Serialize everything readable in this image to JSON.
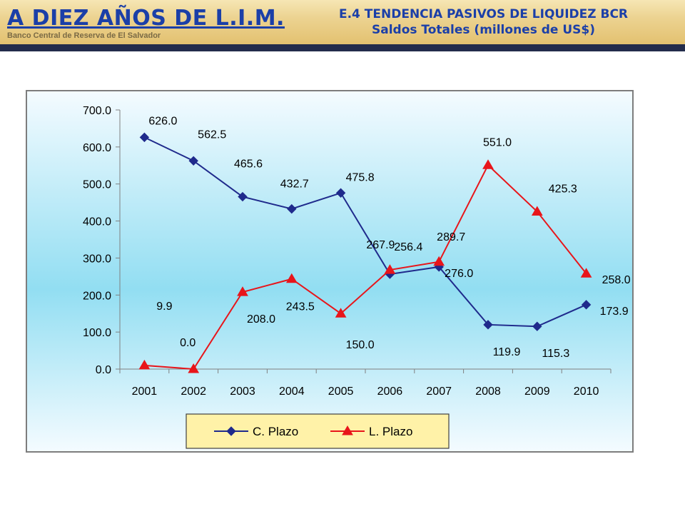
{
  "header": {
    "title": "A DIEZ AÑOS DE L.I.M.",
    "organization": "Banco Central de Reserva de El Salvador",
    "slide_title_line1": "E.4 TENDENCIA PASIVOS DE LIQUIDEZ BCR",
    "slide_title_line2": "Saldos Totales (millones de US$)"
  },
  "colors": {
    "c_plazo": "#1f2a8c",
    "l_plazo": "#e8151a",
    "plot_top": "#f4fbff",
    "plot_mid": "#92def2"
  },
  "chart_data": {
    "type": "line",
    "title": "",
    "xlabel": "",
    "ylabel": "",
    "categories": [
      "2001",
      "2002",
      "2003",
      "2004",
      "2005",
      "2006",
      "2007",
      "2008",
      "2009",
      "2010"
    ],
    "ylim": [
      0,
      700
    ],
    "yticks": [
      0,
      100,
      200,
      300,
      400,
      500,
      600,
      700
    ],
    "ytick_labels": [
      "0.0",
      "100.0",
      "200.0",
      "300.0",
      "400.0",
      "500.0",
      "600.0",
      "700.0"
    ],
    "grid": false,
    "legend_position": "bottom",
    "series": [
      {
        "name": "C. Plazo",
        "marker": "diamond",
        "values": [
          626.0,
          562.5,
          465.6,
          432.7,
          475.8,
          256.4,
          276.0,
          119.9,
          115.3,
          173.9
        ],
        "labels": [
          "626.0",
          "562.5",
          "465.6",
          "432.7",
          "475.8",
          "256.4",
          "276.0",
          "119.9",
          "115.3",
          "173.9"
        ]
      },
      {
        "name": "L. Plazo",
        "marker": "triangle",
        "values": [
          9.9,
          0.0,
          208.0,
          243.5,
          150.0,
          267.9,
          289.7,
          551.0,
          425.3,
          258.0
        ],
        "labels": [
          "9.9",
          "0.0",
          "208.0",
          "243.5",
          "150.0",
          "267.9",
          "289.7",
          "551.0",
          "425.3",
          "258.0"
        ]
      }
    ]
  }
}
